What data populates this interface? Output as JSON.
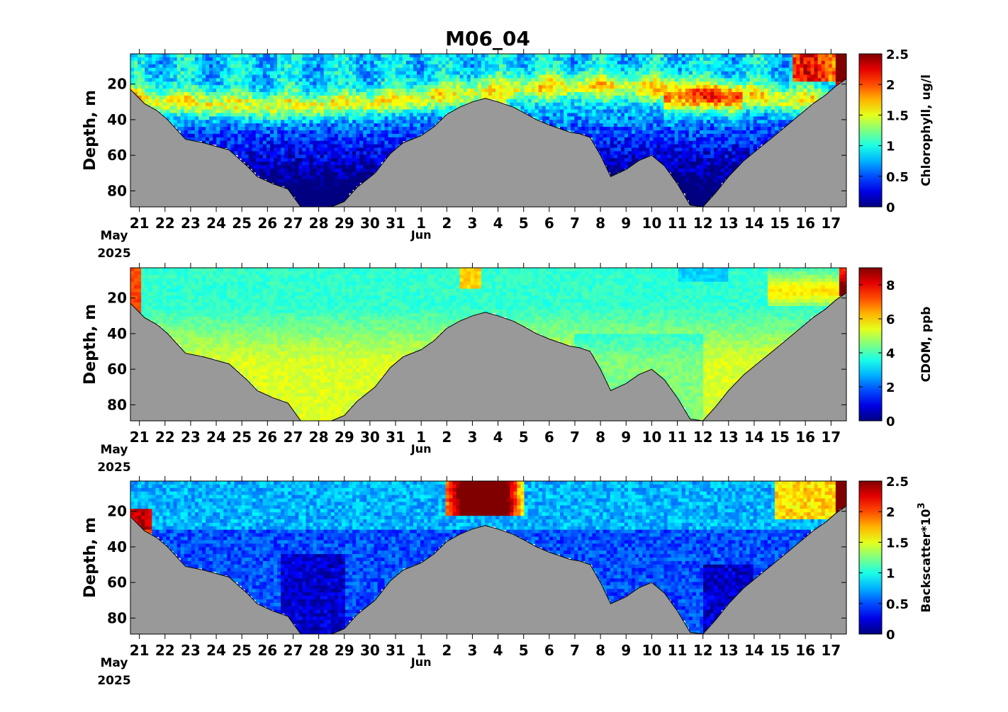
{
  "title": "M06_04",
  "chart_data": [
    {
      "type": "heatmap",
      "xlabel": "",
      "ylabel": "Depth, m",
      "x_ticks": [
        "21",
        "22",
        "23",
        "24",
        "25",
        "26",
        "27",
        "28",
        "29",
        "30",
        "31",
        "1",
        "2",
        "3",
        "4",
        "5",
        "6",
        "7",
        "8",
        "9",
        "10",
        "11",
        "12",
        "13",
        "14",
        "15",
        "16",
        "17"
      ],
      "x_sublabels": {
        "month_start": "May",
        "year": "2025",
        "month_change": "Jun"
      },
      "xlim_days": [
        20.65,
        48.6
      ],
      "ylim": [
        89,
        3
      ],
      "y_ticks": [
        20,
        40,
        60,
        80
      ],
      "colorbar": {
        "label": "Chlorophyll, ug/l",
        "ticks": [
          "0",
          "0.5",
          "1",
          "1.5",
          "2",
          "2.5"
        ],
        "range": [
          0,
          2.5
        ]
      },
      "description_note": "",
      "variable": "chl"
    },
    {
      "type": "heatmap",
      "xlabel": "",
      "ylabel": "Depth, m",
      "x_ticks": [
        "21",
        "22",
        "23",
        "24",
        "25",
        "26",
        "27",
        "28",
        "29",
        "30",
        "31",
        "1",
        "2",
        "3",
        "4",
        "5",
        "6",
        "7",
        "8",
        "9",
        "10",
        "11",
        "12",
        "13",
        "14",
        "15",
        "16",
        "17"
      ],
      "x_sublabels": {
        "month_start": "May",
        "year": "2025",
        "month_change": "Jun"
      },
      "xlim_days": [
        20.65,
        48.6
      ],
      "ylim": [
        89,
        3
      ],
      "y_ticks": [
        20,
        40,
        60,
        80
      ],
      "colorbar": {
        "label": "CDOM, ppb",
        "ticks": [
          "0",
          "2",
          "4",
          "6",
          "8"
        ],
        "range": [
          0,
          9
        ]
      },
      "description_note": "",
      "variable": "cdom"
    },
    {
      "type": "heatmap",
      "xlabel": "",
      "ylabel": "Depth, m",
      "x_ticks": [
        "21",
        "22",
        "23",
        "24",
        "25",
        "26",
        "27",
        "28",
        "29",
        "30",
        "31",
        "1",
        "2",
        "3",
        "4",
        "5",
        "6",
        "7",
        "8",
        "9",
        "10",
        "11",
        "12",
        "13",
        "14",
        "15",
        "16",
        "17"
      ],
      "x_sublabels": {
        "month_start": "May",
        "year": "2025",
        "month_change": "Jun"
      },
      "xlim_days": [
        20.65,
        48.6
      ],
      "ylim": [
        89,
        3
      ],
      "y_ticks": [
        20,
        40,
        60,
        80
      ],
      "colorbar": {
        "label": "Backscatter*10",
        "label_superscript": "3",
        "ticks": [
          "0",
          "0.5",
          "1",
          "1.5",
          "2",
          "2.5"
        ],
        "range": [
          0,
          2.5
        ]
      },
      "description_note": "",
      "variable": "bb"
    }
  ],
  "bottom_depth_profile": {
    "days": [
      20.65,
      21.2,
      21.7,
      22.1,
      22.8,
      23.5,
      24.5,
      25.2,
      25.6,
      26.2,
      26.8,
      27.3,
      27.9,
      28.5,
      29.0,
      29.5,
      30.2,
      30.8,
      31.3,
      32.0,
      32.5,
      33.0,
      33.5,
      34.0,
      34.5,
      35.0,
      35.6,
      36.0,
      36.5,
      37.0,
      37.4,
      37.8,
      38.2,
      38.6,
      39.0,
      39.4,
      40.0,
      40.5,
      41.0,
      41.5,
      42.0,
      42.5,
      43.0,
      43.5,
      44.0,
      44.6,
      45.2,
      45.8,
      46.3,
      46.8,
      47.3,
      47.8,
      48.2,
      48.6
    ],
    "depths": [
      23,
      31,
      35,
      40,
      51,
      53,
      57,
      66,
      72,
      76,
      79,
      90,
      90,
      90,
      86,
      78,
      70,
      59,
      53,
      49,
      44,
      37,
      33,
      30,
      28,
      30,
      33,
      36,
      40,
      43,
      45,
      47,
      48,
      50,
      60,
      72,
      68,
      63,
      60,
      66,
      76,
      88,
      92,
      81,
      72,
      63,
      56,
      49,
      43,
      37,
      31,
      26,
      21,
      17
    ]
  }
}
